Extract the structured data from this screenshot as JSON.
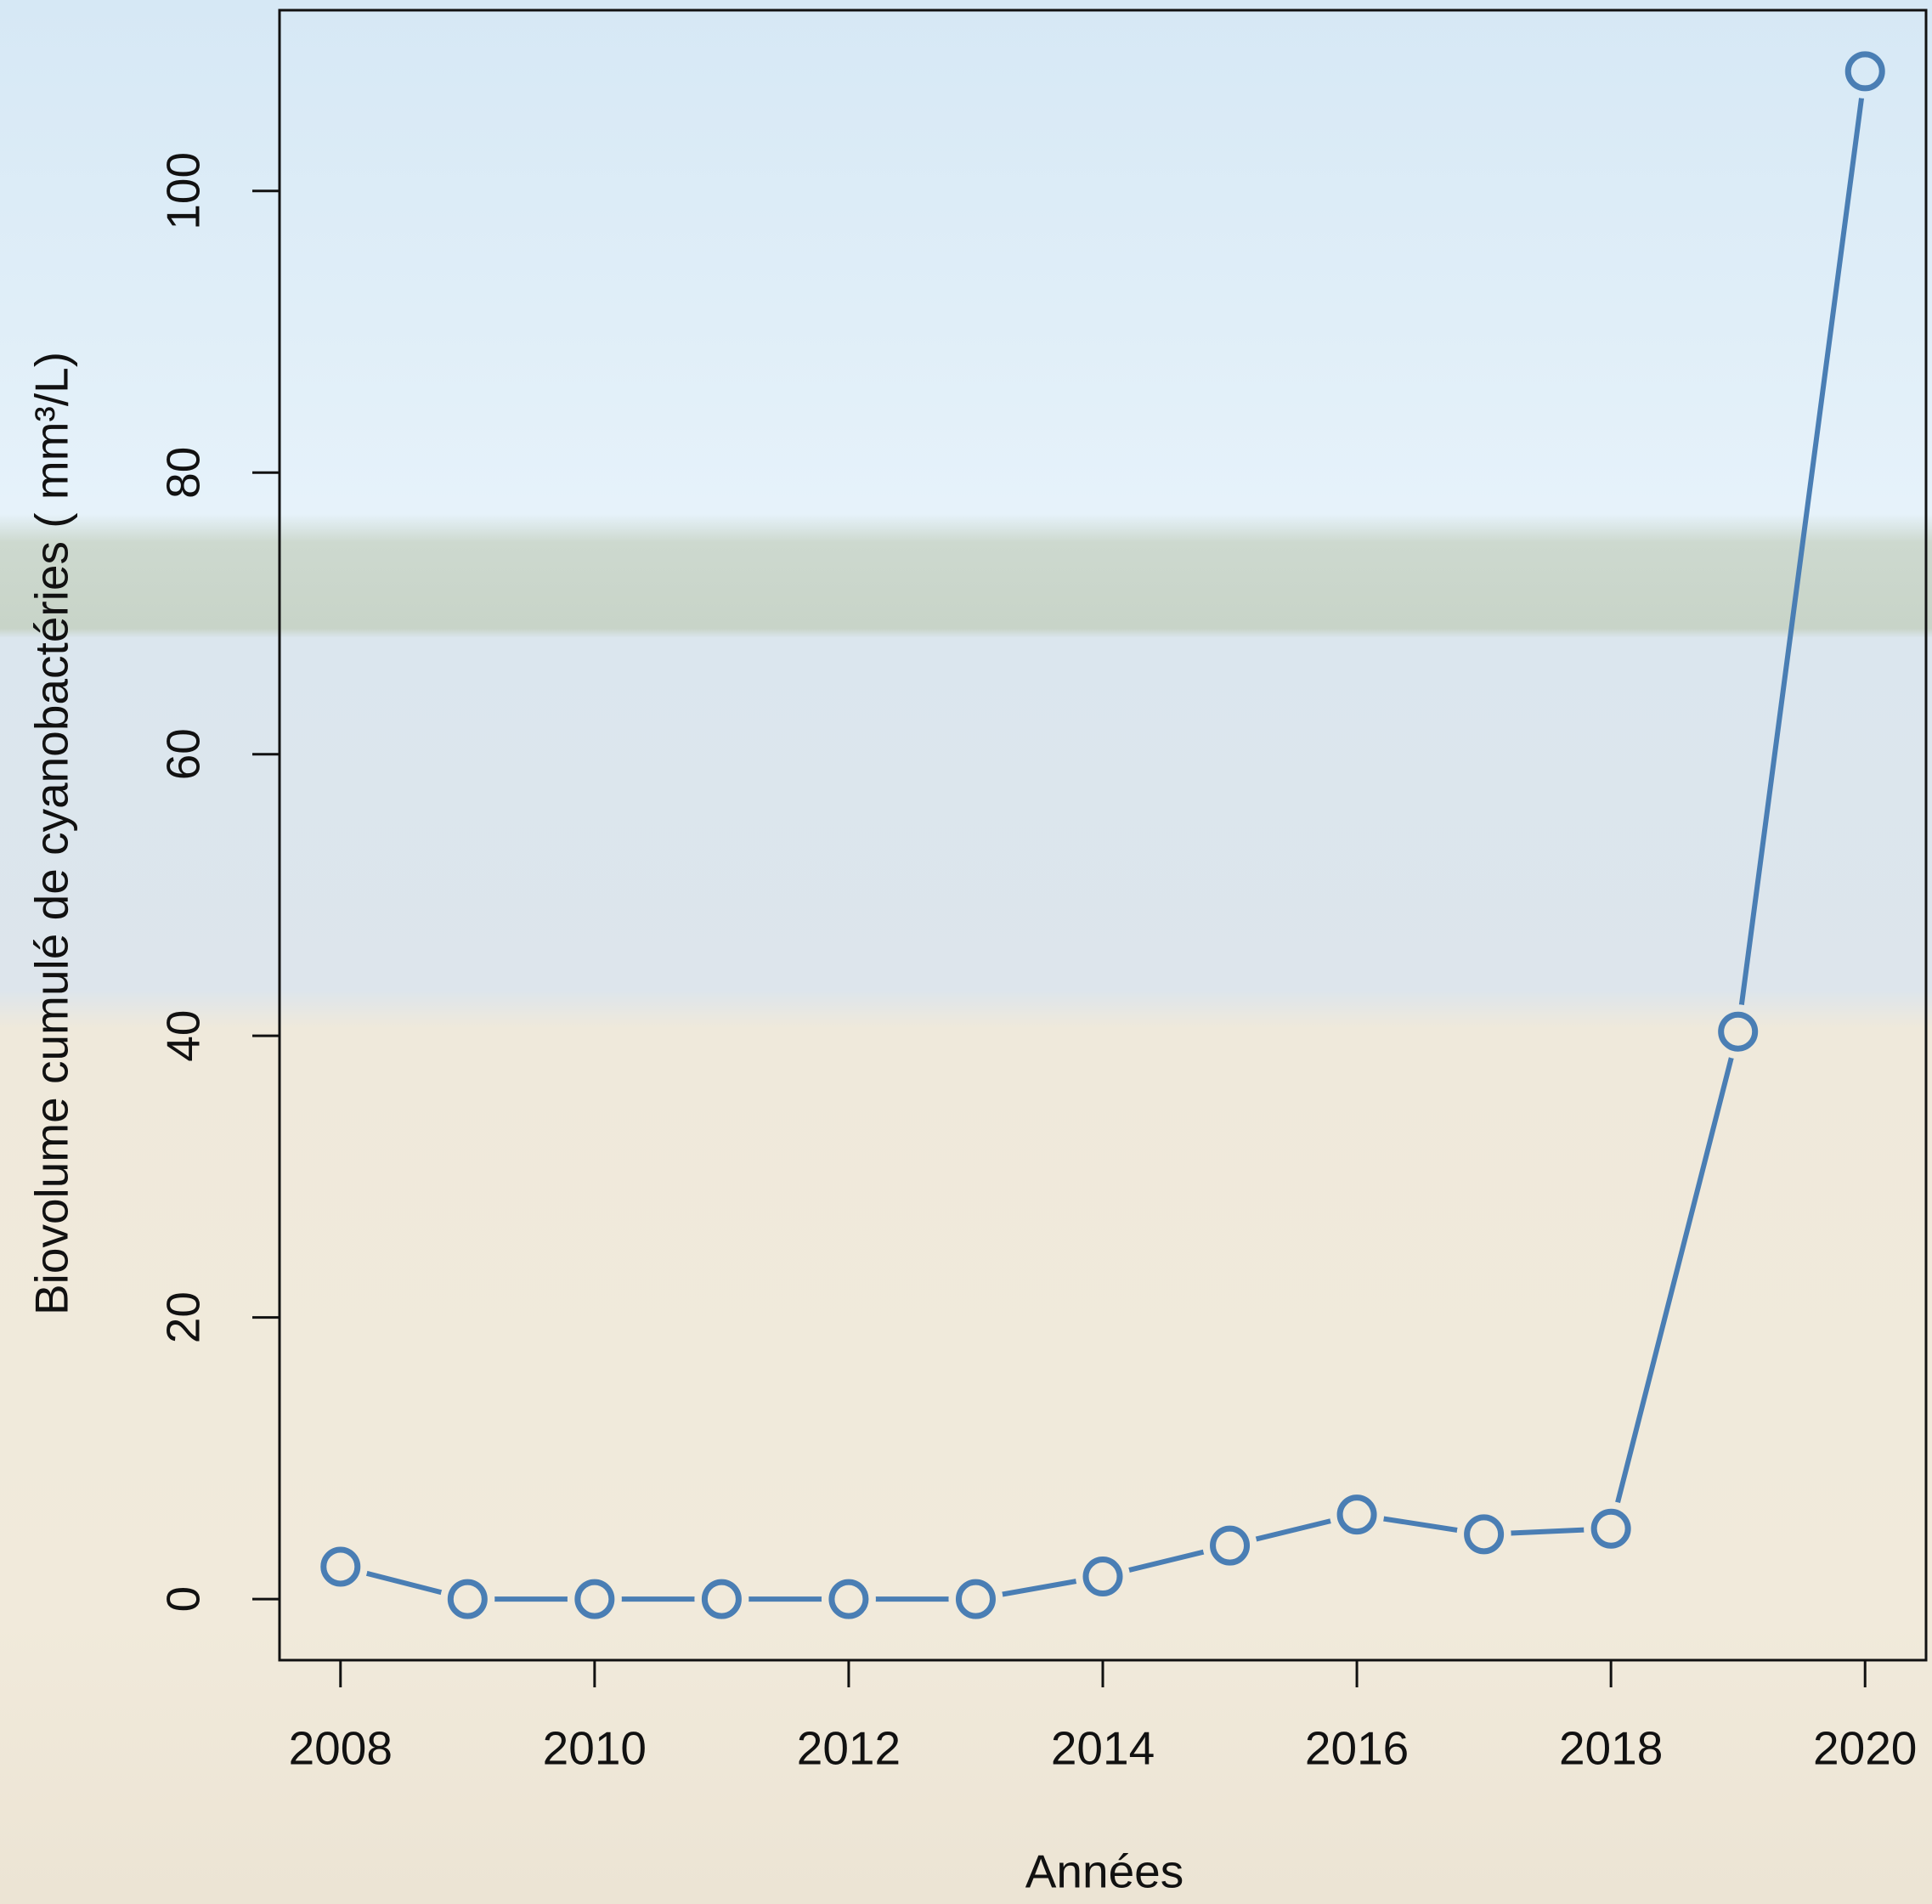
{
  "chart_data": {
    "type": "line",
    "x_label": "Années",
    "y_label": "Biovolume cumulé de cyanobactéries ( mm³/L)",
    "x": [
      2008,
      2009,
      2010,
      2011,
      2012,
      2013,
      2014,
      2015,
      2016,
      2017,
      2018,
      2019,
      2020
    ],
    "series": [
      {
        "color": "#4a7eb4",
        "values": [
          2.3,
          0,
          0,
          0,
          0,
          0,
          1.6,
          3.8,
          6.0,
          4.6,
          5.0,
          40.3,
          108.5
        ]
      }
    ],
    "xlim": [
      2007.52,
      2020.48
    ],
    "xticks": [
      2008,
      2010,
      2012,
      2014,
      2016,
      2018,
      2020
    ],
    "ylim": [
      -4.34,
      112.84
    ],
    "yticks": [
      0,
      20,
      40,
      60,
      80,
      100
    ],
    "grid": false
  }
}
